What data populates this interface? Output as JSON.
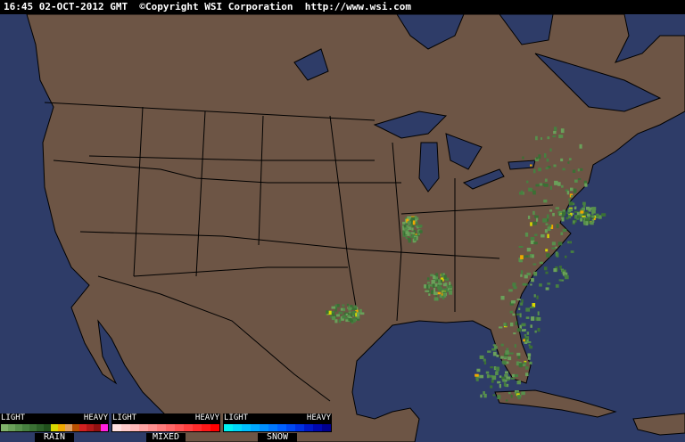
{
  "header": {
    "time": "16:45",
    "date": "02-OCT-2012",
    "zone": "GMT",
    "copyright": "©Copyright WSI Corporation",
    "url": "http://www.wsi.com"
  },
  "colors": {
    "ocean": "#2e3c68",
    "land": "#6d5545",
    "borders": "#000000"
  },
  "legend": [
    {
      "name": "RAIN",
      "low": "LIGHT",
      "high": "HEAVY",
      "colors": [
        "#7fb26a",
        "#6aa05a",
        "#57904c",
        "#468040",
        "#3a7034",
        "#2c6028",
        "#20501c",
        "#d8d800",
        "#f0a800",
        "#e0a060",
        "#b85000",
        "#d02020",
        "#b01818",
        "#901010",
        "#ff20e0"
      ]
    },
    {
      "name": "MIXED",
      "low": "LIGHT",
      "high": "HEAVY",
      "colors": [
        "#ffe0e0",
        "#ffcccc",
        "#ffb8b8",
        "#ffa4a4",
        "#ff9090",
        "#ff7c7c",
        "#ff6868",
        "#ff5454",
        "#ff4040",
        "#ff2c2c",
        "#ff1818",
        "#ff0000"
      ]
    },
    {
      "name": "SNOW",
      "low": "LIGHT",
      "high": "HEAVY",
      "colors": [
        "#00f0f0",
        "#00d8f8",
        "#00c0ff",
        "#00a8ff",
        "#0090ff",
        "#0078ff",
        "#0060ff",
        "#0048f0",
        "#0030e0",
        "#0018c8",
        "#0008b0",
        "#000090"
      ]
    }
  ]
}
